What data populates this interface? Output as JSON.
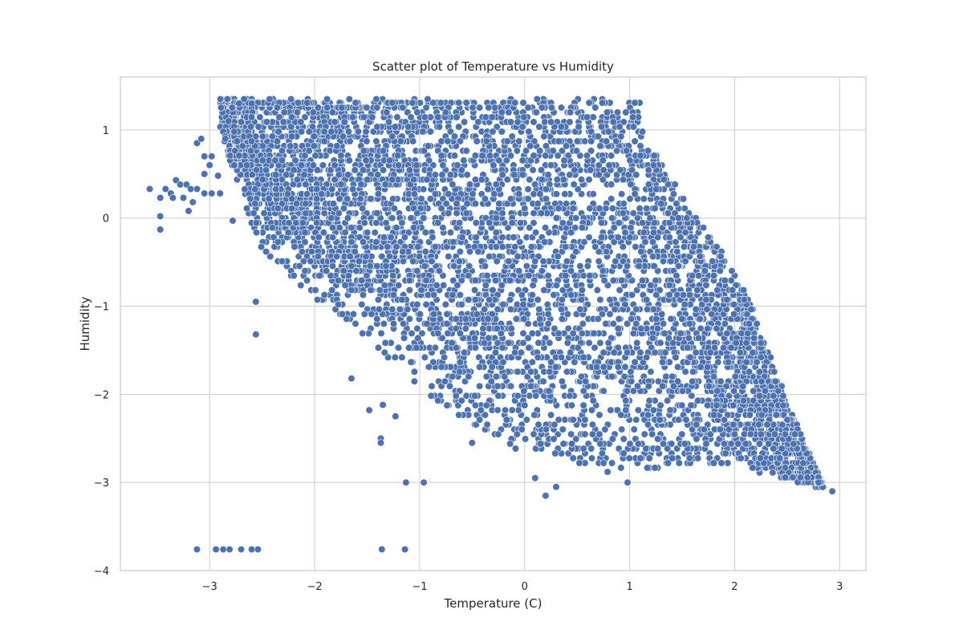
{
  "chart_data": {
    "type": "scatter",
    "title": "Scatter plot of Temperature vs Humidity",
    "xlabel": "Temperature (C)",
    "ylabel": "Humidity",
    "xlim": [
      -3.85,
      3.25
    ],
    "ylim": [
      -4.0,
      1.6
    ],
    "x_ticks": [
      -3,
      -2,
      -1,
      0,
      1,
      2,
      3
    ],
    "y_ticks": [
      -4,
      -3,
      -2,
      -1,
      0,
      1
    ],
    "grid": true,
    "point_color": "#4c72b0",
    "grid_color": "#cccccc",
    "frame_color": "#cccccc",
    "cloud": {
      "count": 9000,
      "humidity_max": 1.35,
      "upper_edge_points": [
        [
          -2.2,
          1.35
        ],
        [
          1.1,
          1.35
        ],
        [
          1.2,
          0.8
        ],
        [
          2.1,
          -0.8
        ],
        [
          2.5,
          -2.1
        ],
        [
          2.85,
          -3.05
        ]
      ],
      "lower_edge_points": [
        [
          -2.9,
          1.0
        ],
        [
          -2.55,
          -0.3
        ],
        [
          -2.0,
          -0.9
        ],
        [
          -1.3,
          -1.6
        ],
        [
          -0.5,
          -2.4
        ],
        [
          0.0,
          -2.7
        ],
        [
          1.0,
          -2.9
        ],
        [
          2.0,
          -2.8
        ],
        [
          2.85,
          -3.05
        ]
      ]
    },
    "outliers": [
      {
        "x": -3.12,
        "y": -3.76
      },
      {
        "x": -2.94,
        "y": -3.76
      },
      {
        "x": -2.87,
        "y": -3.76
      },
      {
        "x": -2.81,
        "y": -3.76
      },
      {
        "x": -2.7,
        "y": -3.76
      },
      {
        "x": -2.6,
        "y": -3.76
      },
      {
        "x": -2.54,
        "y": -3.76
      },
      {
        "x": -1.36,
        "y": -3.76
      },
      {
        "x": -1.14,
        "y": -3.76
      },
      {
        "x": -1.13,
        "y": -3.0
      },
      {
        "x": -0.96,
        "y": -3.0
      },
      {
        "x": 0.98,
        "y": -3.0
      },
      {
        "x": -1.37,
        "y": -2.5
      },
      {
        "x": -1.37,
        "y": -2.55
      },
      {
        "x": -0.5,
        "y": -2.55
      },
      {
        "x": 0.1,
        "y": -2.95
      },
      {
        "x": 0.2,
        "y": -3.15
      },
      {
        "x": 0.3,
        "y": -3.05
      },
      {
        "x": 0.79,
        "y": -2.88
      },
      {
        "x": 2.93,
        "y": -3.1
      },
      {
        "x": 2.8,
        "y": -3.0
      },
      {
        "x": -2.56,
        "y": -1.32
      },
      {
        "x": -2.56,
        "y": -0.95
      },
      {
        "x": -1.65,
        "y": -1.82
      },
      {
        "x": -1.48,
        "y": -2.18
      },
      {
        "x": -1.35,
        "y": -2.12
      },
      {
        "x": -1.23,
        "y": -2.25
      },
      {
        "x": -3.57,
        "y": 0.33
      },
      {
        "x": -3.47,
        "y": 0.02
      },
      {
        "x": -3.47,
        "y": -0.13
      },
      {
        "x": -3.47,
        "y": 0.23
      },
      {
        "x": -3.42,
        "y": 0.33
      },
      {
        "x": -3.37,
        "y": 0.28
      },
      {
        "x": -3.35,
        "y": 0.23
      },
      {
        "x": -3.32,
        "y": 0.43
      },
      {
        "x": -3.28,
        "y": 0.38
      },
      {
        "x": -3.25,
        "y": 0.23
      },
      {
        "x": -3.22,
        "y": 0.38
      },
      {
        "x": -3.18,
        "y": 0.33
      },
      {
        "x": -3.2,
        "y": 0.08
      },
      {
        "x": -3.16,
        "y": 0.18
      },
      {
        "x": -3.12,
        "y": 0.33
      },
      {
        "x": -3.12,
        "y": 0.85
      },
      {
        "x": -3.08,
        "y": 0.9
      },
      {
        "x": -3.05,
        "y": 0.7
      },
      {
        "x": -3.05,
        "y": 0.5
      },
      {
        "x": -3.05,
        "y": 0.28
      },
      {
        "x": -3.0,
        "y": 0.6
      },
      {
        "x": -2.98,
        "y": 0.7
      },
      {
        "x": -2.98,
        "y": 0.28
      },
      {
        "x": -2.92,
        "y": 0.48
      },
      {
        "x": -2.9,
        "y": 0.28
      },
      {
        "x": -2.85,
        "y": 0.9
      },
      {
        "x": -2.82,
        "y": 1.1
      },
      {
        "x": -2.78,
        "y": -0.03
      },
      {
        "x": -2.72,
        "y": 1.3
      },
      {
        "x": -2.6,
        "y": 1.3
      }
    ]
  }
}
